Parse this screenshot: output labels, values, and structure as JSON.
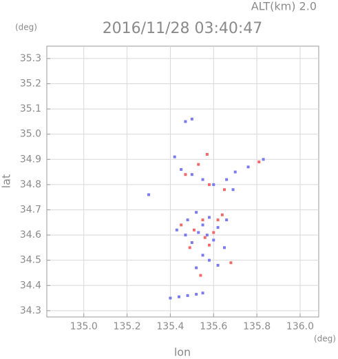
{
  "chart_data": {
    "type": "scatter",
    "title": "2016/11/28 03:40:47",
    "subtitle": "ALT(km) 2.0",
    "y_unit": "(deg)",
    "x_unit": "(deg)",
    "x_label": "lon",
    "y_label": "lat",
    "xlim": [
      134.829,
      136.086
    ],
    "ylim": [
      34.275,
      35.349
    ],
    "xticks": [
      {
        "value": 135,
        "label": "135.0"
      },
      135.2,
      135.4,
      135.6,
      135.8,
      {
        "value": 136,
        "label": "136.0"
      }
    ],
    "yticks": [
      34.3,
      34.4,
      34.5,
      34.6,
      34.7,
      34.8,
      34.9,
      {
        "value": 35,
        "label": "35.0"
      },
      35.1,
      35.2,
      35.3
    ],
    "grid": true,
    "series": [
      {
        "color": "#7b7bf0",
        "x": [
          135.47,
          135.5,
          135.42,
          135.45,
          135.5,
          135.55,
          135.6,
          135.66,
          135.7,
          135.76,
          135.83,
          135.3,
          135.43,
          135.48,
          135.52,
          135.55,
          135.58,
          135.62,
          135.6,
          135.5,
          135.55,
          135.58,
          135.62,
          135.52,
          135.47,
          135.65,
          135.4,
          135.44,
          135.48,
          135.52,
          135.55,
          135.57,
          135.53,
          135.66,
          135.69
        ],
        "values": [
          35.05,
          35.06,
          34.91,
          34.86,
          34.84,
          34.82,
          34.8,
          34.82,
          34.85,
          34.87,
          34.9,
          34.76,
          34.62,
          34.66,
          34.69,
          34.64,
          34.67,
          34.63,
          34.58,
          34.57,
          34.52,
          34.5,
          34.48,
          34.47,
          34.6,
          34.55,
          34.35,
          34.355,
          34.36,
          34.365,
          34.37,
          34.6,
          34.61,
          34.66,
          34.78
        ]
      },
      {
        "color": "#f06a6a",
        "x": [
          135.53,
          135.57,
          135.58,
          135.65,
          135.81,
          135.45,
          135.51,
          135.56,
          135.6,
          135.64,
          135.58,
          135.49,
          135.54,
          135.68,
          135.62,
          135.55,
          135.47
        ],
        "values": [
          34.88,
          34.92,
          34.8,
          34.78,
          34.89,
          34.64,
          34.62,
          34.59,
          34.61,
          34.68,
          34.56,
          34.55,
          34.44,
          34.49,
          34.66,
          34.66,
          34.84
        ]
      }
    ]
  }
}
